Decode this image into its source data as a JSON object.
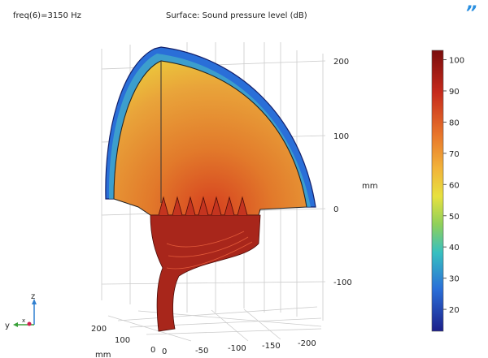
{
  "header": {
    "parameter": "freq(6)=3150 Hz",
    "title": "Surface: Sound pressure level (dB)",
    "logo_mark": "quote-logo"
  },
  "chart_data": {
    "type": "heatmap",
    "title": "Surface: Sound pressure level (dB)",
    "subtitle": "freq(6)=3150 Hz",
    "colorbar": {
      "ticks": [
        100,
        90,
        80,
        70,
        60,
        50,
        40,
        30,
        20
      ],
      "range": [
        13,
        103
      ],
      "colormap": [
        "#8b0000",
        "#d73027",
        "#f46d43",
        "#fdae61",
        "#fee08b",
        "#d9ef8b",
        "#66c2a5",
        "#3288bd",
        "#1a237e"
      ]
    },
    "z_axis": {
      "label": "mm",
      "ticks": [
        "200",
        "100",
        "0",
        "-100"
      ]
    },
    "y_axis": {
      "label": "",
      "ticks": [
        "0",
        "-50",
        "-100",
        "-150",
        "-200"
      ]
    },
    "x_axis": {
      "label": "mm",
      "ticks": [
        "200",
        "100",
        "0"
      ]
    },
    "triad": {
      "z": "z",
      "y": "y",
      "x": "x"
    }
  }
}
